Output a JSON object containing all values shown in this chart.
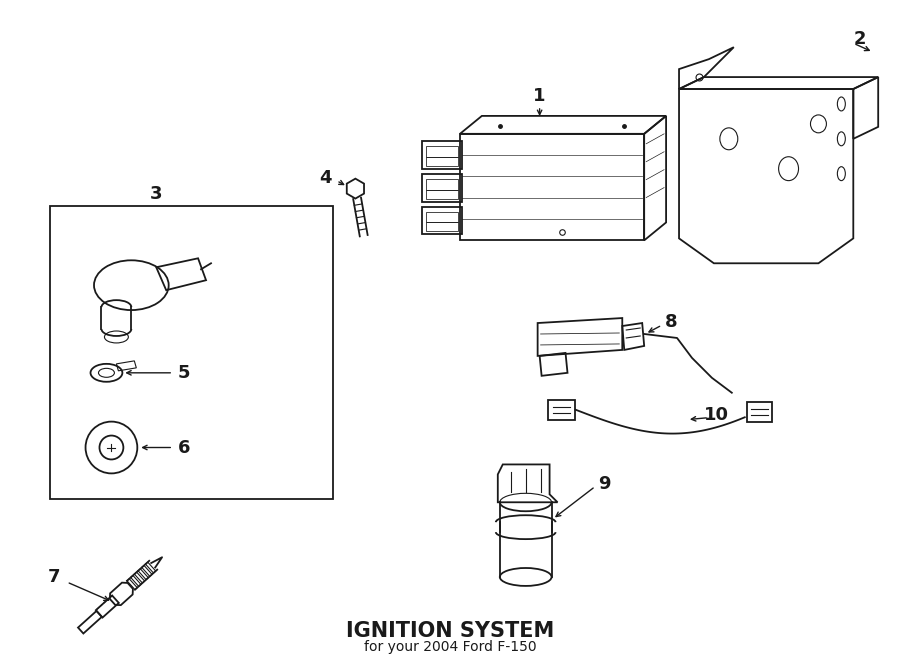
{
  "title": "IGNITION SYSTEM",
  "subtitle": "for your 2004 Ford F-150",
  "bg_color": "#ffffff",
  "line_color": "#1a1a1a",
  "fig_width": 9.0,
  "fig_height": 6.61,
  "dpi": 100
}
